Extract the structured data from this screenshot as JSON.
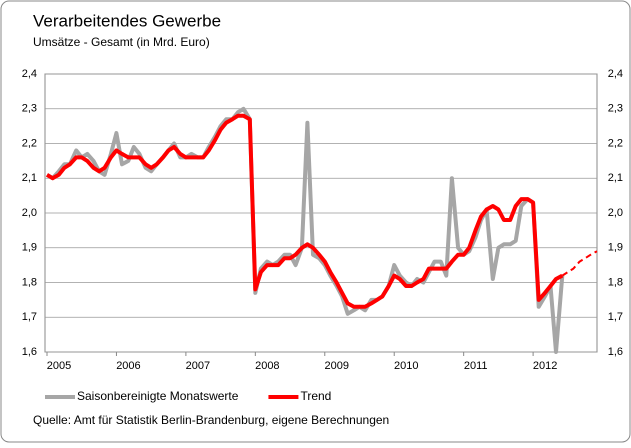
{
  "chart_data": {
    "type": "line",
    "title": "Verarbeitendes Gewerbe",
    "subtitle": "Umsätze - Gesamt (in Mrd. Euro)",
    "source": "Quelle: Amt für Statistik Berlin-Brandenburg, eigene Berechnungen",
    "x": [
      2005.0,
      2005.08,
      2005.17,
      2005.25,
      2005.33,
      2005.42,
      2005.5,
      2005.58,
      2005.67,
      2005.75,
      2005.83,
      2005.92,
      2006.0,
      2006.08,
      2006.17,
      2006.25,
      2006.33,
      2006.42,
      2006.5,
      2006.58,
      2006.67,
      2006.75,
      2006.83,
      2006.92,
      2007.0,
      2007.08,
      2007.17,
      2007.25,
      2007.33,
      2007.42,
      2007.5,
      2007.58,
      2007.67,
      2007.75,
      2007.83,
      2007.92,
      2008.0,
      2008.08,
      2008.17,
      2008.25,
      2008.33,
      2008.42,
      2008.5,
      2008.58,
      2008.67,
      2008.75,
      2008.83,
      2008.92,
      2009.0,
      2009.08,
      2009.17,
      2009.25,
      2009.33,
      2009.42,
      2009.5,
      2009.58,
      2009.67,
      2009.75,
      2009.83,
      2009.92,
      2010.0,
      2010.08,
      2010.17,
      2010.25,
      2010.33,
      2010.42,
      2010.5,
      2010.58,
      2010.67,
      2010.75,
      2010.83,
      2010.92,
      2011.0,
      2011.08,
      2011.17,
      2011.25,
      2011.33,
      2011.42,
      2011.5,
      2011.58,
      2011.67,
      2011.75,
      2011.83,
      2011.92,
      2012.0,
      2012.08,
      2012.17,
      2012.25,
      2012.33,
      2012.42,
      2012.5,
      2012.58,
      2012.67,
      2012.75,
      2012.83,
      2012.92
    ],
    "series": [
      {
        "name": "Saisonbereinigte Monatswerte",
        "color": "#a6a6a6",
        "width": 4,
        "values": [
          2.11,
          2.1,
          2.12,
          2.14,
          2.14,
          2.18,
          2.16,
          2.17,
          2.15,
          2.12,
          2.11,
          2.17,
          2.23,
          2.14,
          2.15,
          2.19,
          2.17,
          2.13,
          2.12,
          2.14,
          2.16,
          2.18,
          2.2,
          2.16,
          2.16,
          2.17,
          2.16,
          2.16,
          2.19,
          2.22,
          2.25,
          2.27,
          2.27,
          2.29,
          2.3,
          2.27,
          1.77,
          1.84,
          1.86,
          1.85,
          1.86,
          1.88,
          1.88,
          1.85,
          1.9,
          2.26,
          1.88,
          1.87,
          1.85,
          1.82,
          1.79,
          1.76,
          1.71,
          1.72,
          1.73,
          1.72,
          1.75,
          1.75,
          1.76,
          1.79,
          1.85,
          1.82,
          1.8,
          1.79,
          1.81,
          1.8,
          1.83,
          1.86,
          1.86,
          1.82,
          2.1,
          1.9,
          1.88,
          1.89,
          1.93,
          1.98,
          2.01,
          1.81,
          1.9,
          1.91,
          1.91,
          1.92,
          2.02,
          2.04,
          2.03,
          1.73,
          1.76,
          1.79,
          1.6,
          1.82,
          null,
          null,
          null,
          null,
          null,
          null
        ]
      },
      {
        "name": "Trend",
        "color": "#ff0000",
        "width": 4,
        "values": [
          2.11,
          2.1,
          2.11,
          2.13,
          2.14,
          2.16,
          2.16,
          2.15,
          2.13,
          2.12,
          2.13,
          2.16,
          2.18,
          2.17,
          2.16,
          2.16,
          2.16,
          2.14,
          2.13,
          2.14,
          2.16,
          2.18,
          2.19,
          2.17,
          2.16,
          2.16,
          2.16,
          2.16,
          2.18,
          2.21,
          2.24,
          2.26,
          2.27,
          2.28,
          2.28,
          2.27,
          1.78,
          1.83,
          1.85,
          1.85,
          1.85,
          1.87,
          1.87,
          1.88,
          1.9,
          1.91,
          1.9,
          1.88,
          1.86,
          1.83,
          1.8,
          1.77,
          1.74,
          1.73,
          1.73,
          1.73,
          1.74,
          1.75,
          1.76,
          1.79,
          1.82,
          1.81,
          1.79,
          1.79,
          1.8,
          1.81,
          1.84,
          1.84,
          1.84,
          1.84,
          1.86,
          1.88,
          1.88,
          1.9,
          1.95,
          1.99,
          2.01,
          2.02,
          2.01,
          1.98,
          1.98,
          2.02,
          2.04,
          2.04,
          2.03,
          1.75,
          1.77,
          1.79,
          1.81,
          1.82,
          null,
          null,
          null,
          null,
          null,
          null
        ]
      },
      {
        "color": "#ff0000",
        "width": 2,
        "dashed": true,
        "values": [
          null,
          null,
          null,
          null,
          null,
          null,
          null,
          null,
          null,
          null,
          null,
          null,
          null,
          null,
          null,
          null,
          null,
          null,
          null,
          null,
          null,
          null,
          null,
          null,
          null,
          null,
          null,
          null,
          null,
          null,
          null,
          null,
          null,
          null,
          null,
          null,
          null,
          null,
          null,
          null,
          null,
          null,
          null,
          null,
          null,
          null,
          null,
          null,
          null,
          null,
          null,
          null,
          null,
          null,
          null,
          null,
          null,
          null,
          null,
          null,
          null,
          null,
          null,
          null,
          null,
          null,
          null,
          null,
          null,
          null,
          null,
          null,
          null,
          null,
          null,
          null,
          null,
          null,
          null,
          null,
          null,
          null,
          null,
          null,
          null,
          null,
          null,
          null,
          null,
          1.82,
          1.83,
          1.84,
          1.86,
          1.87,
          1.88,
          1.89
        ]
      }
    ],
    "xlim": [
      2005,
      2012.92
    ],
    "xticks": [
      2005,
      2006,
      2007,
      2008,
      2009,
      2010,
      2011,
      2012
    ],
    "ylim": [
      1.6,
      2.4
    ],
    "yticks": [
      {
        "value": 1.6,
        "label": "1,6"
      },
      {
        "value": 1.7,
        "label": "1,7"
      },
      {
        "value": 1.8,
        "label": "1,8"
      },
      {
        "value": 1.9,
        "label": "1,9"
      },
      {
        "value": 2.0,
        "label": "2,0"
      },
      {
        "value": 2.1,
        "label": "2,1"
      },
      {
        "value": 2.2,
        "label": "2,2"
      },
      {
        "value": 2.3,
        "label": "2,3"
      },
      {
        "value": 2.4,
        "label": "2,4"
      }
    ],
    "y2lim": [
      1.6,
      2.4
    ],
    "y2ticks": [
      {
        "value": 1.6,
        "label": "1,6"
      },
      {
        "value": 1.7,
        "label": "1,7"
      },
      {
        "value": 1.8,
        "label": "1,8"
      },
      {
        "value": 1.9,
        "label": "1,9"
      },
      {
        "value": 2.0,
        "label": "2,0"
      },
      {
        "value": 2.1,
        "label": "2,1"
      },
      {
        "value": 2.2,
        "label": "2,2"
      },
      {
        "value": 2.3,
        "label": "2,3"
      },
      {
        "value": 2.4,
        "label": "2,4"
      }
    ],
    "grid": true,
    "legend": "bottom"
  }
}
